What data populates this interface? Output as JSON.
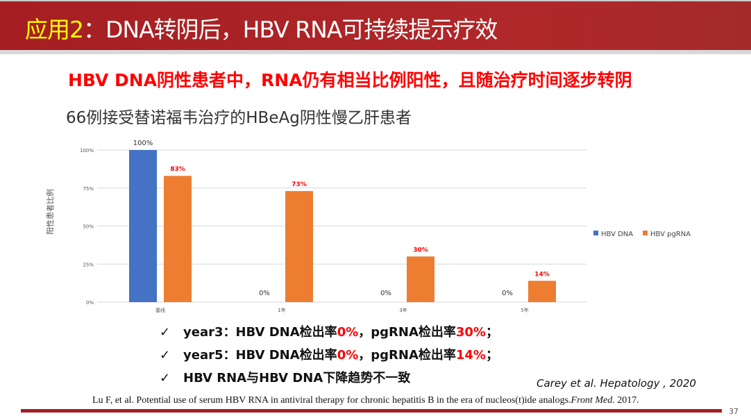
{
  "header": {
    "title_prefix": "应用2",
    "title_sep": "：",
    "title_main": "DNA转阴后，HBV RNA可持续提示疗效"
  },
  "headline": "HBV DNA阴性患者中，RNA仍有相当比例阳性，且随治疗时间逐步转阴",
  "subtitle": "66例接受替诺福韦治疗的HBeAg阴性慢乙肝患者",
  "colors": {
    "dna": "#4472c4",
    "rna": "#ed7d31",
    "accent": "#ff0000",
    "header": "#a51e22"
  },
  "chart_data": {
    "type": "bar",
    "categories": [
      "基线",
      "1年",
      "3年",
      "5年"
    ],
    "ylabel": "阳性患者比例",
    "ylim": [
      0,
      100
    ],
    "yticks": [
      "0%",
      "25%",
      "50%",
      "75%",
      "100%"
    ],
    "grid": true,
    "legend_placement": "right",
    "series": [
      {
        "name": "HBV DNA",
        "values": [
          100,
          0,
          0,
          0
        ],
        "labels": [
          "100%",
          "0%",
          "0%",
          "0%"
        ]
      },
      {
        "name": "HBV pgRNA",
        "values": [
          83,
          73,
          30,
          14
        ],
        "labels": [
          "83%",
          "73%",
          "30%",
          "14%"
        ]
      }
    ]
  },
  "bullets": [
    {
      "check": "✓",
      "a": "year3：HBV DNA检出率",
      "b": "0%",
      "c": "，pgRNA检出率",
      "d": "30%",
      "e": "；"
    },
    {
      "check": "✓",
      "a": "year5：HBV DNA检出率",
      "b": "0%",
      "c": "，pgRNA检出率",
      "d": "14%",
      "e": "；"
    },
    {
      "check": "✓",
      "a": "HBV RNA与HBV DNA下降趋势不一致"
    }
  ],
  "citation1": "Carey et al.  Hepatology , 2020",
  "citation2_main": "Lu F, et al. Potential use of serum HBV RNA in antiviral therapy for chronic hepatitis B in the era of nucleos(t)ide analogs.",
  "citation2_journal": "Front Med.",
  "citation2_year": " 2017.",
  "page_number": "37"
}
